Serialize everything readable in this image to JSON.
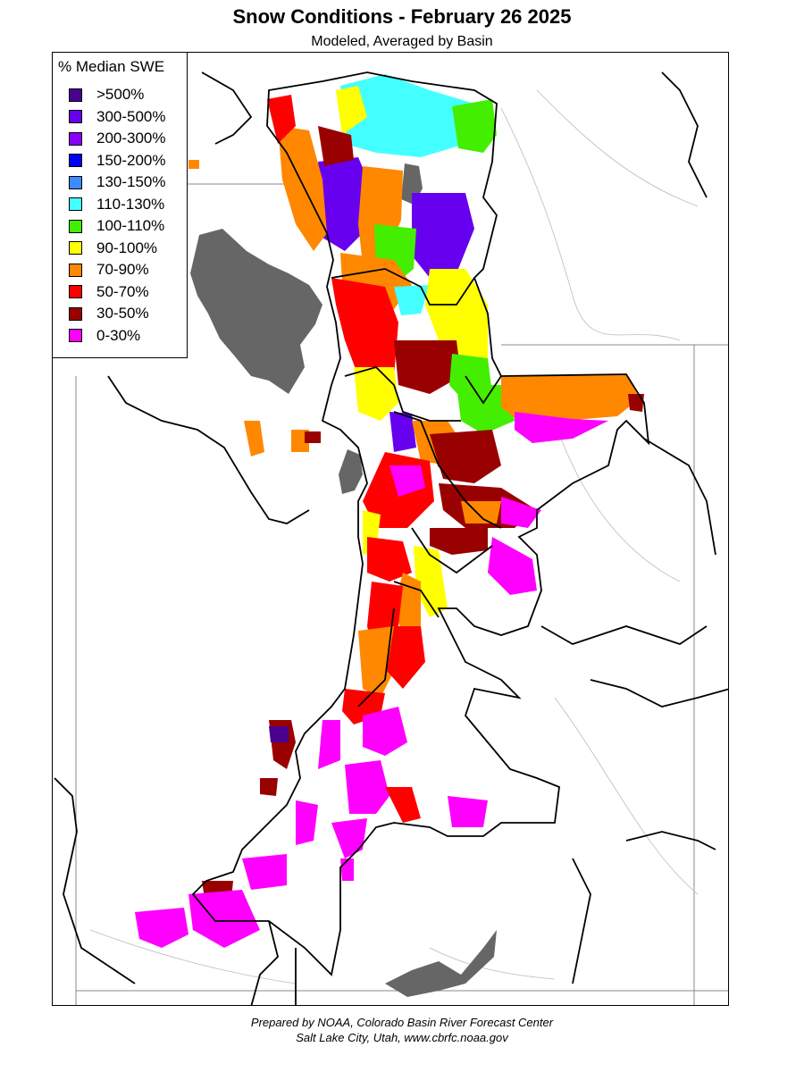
{
  "title": "Snow Conditions - February 26 2025",
  "subtitle": "Modeled, Averaged by Basin",
  "legend": {
    "title": "% Median SWE",
    "items": [
      {
        "label": ">500%",
        "color": "#4b0090"
      },
      {
        "label": "300-500%",
        "color": "#6600ee"
      },
      {
        "label": "200-300%",
        "color": "#8a00ff"
      },
      {
        "label": "150-200%",
        "color": "#0000ff"
      },
      {
        "label": "130-150%",
        "color": "#3c8cff"
      },
      {
        "label": "110-130%",
        "color": "#44ffff"
      },
      {
        "label": "100-110%",
        "color": "#44ee00"
      },
      {
        "label": "90-100%",
        "color": "#ffff00"
      },
      {
        "label": "70-90%",
        "color": "#ff8800"
      },
      {
        "label": "50-70%",
        "color": "#ff0000"
      },
      {
        "label": "30-50%",
        "color": "#990000"
      },
      {
        "label": "0-30%",
        "color": "#ff00ff"
      }
    ]
  },
  "lake_color": "#666666",
  "footer": {
    "line1": "Prepared by NOAA, Colorado Basin River Forecast Center",
    "line2": "Salt Lake City, Utah, www.cbrfc.noaa.gov"
  }
}
